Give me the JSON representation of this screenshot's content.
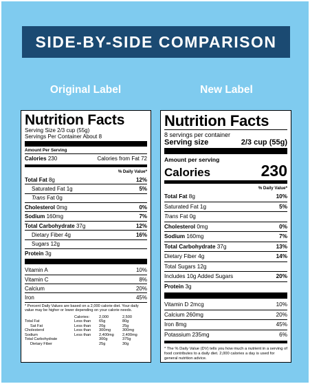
{
  "banner": "SIDE-BY-SIDE COMPARISON",
  "subheads": {
    "original": "Original Label",
    "new": "New Label"
  },
  "original": {
    "title": "Nutrition Facts",
    "serving_size": "Serving Size 2/3 cup (55g)",
    "servings": "Servings Per Container About 8",
    "amount_per_serving": "Amount Per Serving",
    "calories_label": "Calories",
    "calories_value": "230",
    "calories_fat": "Calories from Fat 72",
    "dv_header": "% Daily Value*",
    "rows": [
      {
        "label": "Total Fat",
        "amount": "8g",
        "dv": "12%",
        "bold": true,
        "indent": 0
      },
      {
        "label": "Saturated Fat",
        "amount": "1g",
        "dv": "5%",
        "bold": false,
        "indent": 1
      },
      {
        "label": "Trans",
        "label2": " Fat",
        "amount": "0g",
        "dv": "",
        "bold": false,
        "indent": 1,
        "italic": true
      },
      {
        "label": "Cholesterol",
        "amount": "0mg",
        "dv": "0%",
        "bold": true,
        "indent": 0
      },
      {
        "label": "Sodium",
        "amount": "160mg",
        "dv": "7%",
        "bold": true,
        "indent": 0
      },
      {
        "label": "Total Carbohydrate",
        "amount": "37g",
        "dv": "12%",
        "bold": true,
        "indent": 0
      },
      {
        "label": "Dietary Fiber",
        "amount": "4g",
        "dv": "16%",
        "bold": false,
        "indent": 1
      },
      {
        "label": "Sugars",
        "amount": "12g",
        "dv": "",
        "bold": false,
        "indent": 1
      },
      {
        "label": "Protein",
        "amount": "3g",
        "dv": "",
        "bold": true,
        "indent": 0
      }
    ],
    "vitamins": [
      {
        "label": "Vitamin A",
        "dv": "10%"
      },
      {
        "label": "Vitamin C",
        "dv": "8%"
      },
      {
        "label": "Calcium",
        "dv": "20%"
      },
      {
        "label": "Iron",
        "dv": "45%"
      }
    ],
    "footnote": "* Percent Daily Values are based on a 2,000 calorie diet. Your daily value may be higher or lower depending on your calorie needs.",
    "table_header": [
      "",
      "Calories:",
      "2,000",
      "2,500"
    ],
    "table_rows": [
      [
        "Total Fat",
        "Less than",
        "65g",
        "80g"
      ],
      [
        "Sat Fat",
        "Less than",
        "20g",
        "25g"
      ],
      [
        "Cholesterol",
        "Less than",
        "300mg",
        "300mg"
      ],
      [
        "Sodium",
        "Less than",
        "2,400mg",
        "2,400mg"
      ],
      [
        "Total Carbohydrate",
        "",
        "300g",
        "375g"
      ],
      [
        "Dietary Fiber",
        "",
        "25g",
        "30g"
      ]
    ]
  },
  "new": {
    "title": "Nutrition Facts",
    "servings": "8 servings per container",
    "serving_size_label": "Serving size",
    "serving_size_value": "2/3 cup (55g)",
    "amount_per_serving": "Amount per serving",
    "calories_label": "Calories",
    "calories_value": "230",
    "dv_header": "% Daily Value*",
    "rows": [
      {
        "label": "Total Fat",
        "amount": "8g",
        "dv": "10%",
        "bold": true,
        "indent": 0
      },
      {
        "label": "Saturated Fat",
        "amount": "1g",
        "dv": "5%",
        "bold": false,
        "indent": 1
      },
      {
        "label": "Trans",
        "label2": " Fat",
        "amount": "0g",
        "dv": "",
        "bold": false,
        "indent": 1,
        "italic": true
      },
      {
        "label": "Cholesterol",
        "amount": "0mg",
        "dv": "0%",
        "bold": true,
        "indent": 0
      },
      {
        "label": "Sodium",
        "amount": "160mg",
        "dv": "7%",
        "bold": true,
        "indent": 0
      },
      {
        "label": "Total Carbohydrate",
        "amount": "37g",
        "dv": "13%",
        "bold": true,
        "indent": 0
      },
      {
        "label": "Dietary Fiber",
        "amount": "4g",
        "dv": "14%",
        "bold": false,
        "indent": 1
      },
      {
        "label": "Total Sugars",
        "amount": "12g",
        "dv": "",
        "bold": false,
        "indent": 1
      },
      {
        "label": "Includes 10g Added Sugars",
        "amount": "",
        "dv": "20%",
        "bold": false,
        "indent": 2
      },
      {
        "label": "Protein",
        "amount": "3g",
        "dv": "",
        "bold": true,
        "indent": 0
      }
    ],
    "vitamins": [
      {
        "label": "Vitamin D 2mcg",
        "dv": "10%"
      },
      {
        "label": "Calcium 260mg",
        "dv": "20%"
      },
      {
        "label": "Iron 8mg",
        "dv": "45%"
      },
      {
        "label": "Potassium 235mg",
        "dv": "6%"
      }
    ],
    "footnote": "* The % Daily Value (DV) tells you how much a nutrient in a serving of food contributes to a daily diet. 2,000 calories a day is used for general nutrition advice."
  }
}
